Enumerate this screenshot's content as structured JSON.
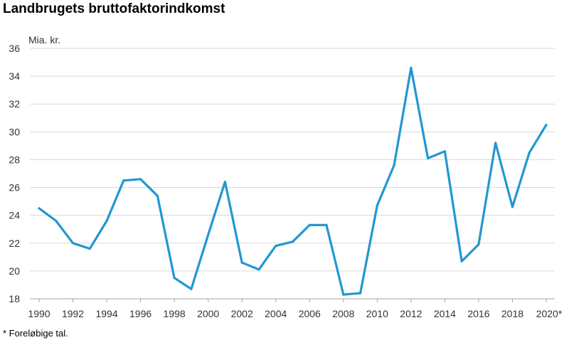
{
  "title": "Landbrugets bruttofaktorindkomst",
  "footnote": "* Foreløbige tal.",
  "colors": {
    "line": "#2197d1",
    "grid": "#d9d9d9",
    "axis": "#a6a6a6",
    "text": "#333333"
  },
  "chart_data": {
    "type": "line",
    "title": "Landbrugets bruttofaktorindkomst",
    "ylabel": "Mia. kr.",
    "xlabel": "",
    "ylim": [
      18,
      36
    ],
    "yticks": [
      18,
      20,
      22,
      24,
      26,
      28,
      30,
      32,
      34,
      36
    ],
    "xlim": [
      1990,
      2020
    ],
    "xtick_labels": [
      "1990",
      "1992",
      "1994",
      "1996",
      "1998",
      "2000",
      "2002",
      "2004",
      "2006",
      "2008",
      "2010",
      "2012",
      "2014",
      "2016",
      "2018",
      "2020*"
    ],
    "x": [
      1990,
      1991,
      1992,
      1993,
      1994,
      1995,
      1996,
      1997,
      1998,
      1999,
      2000,
      2001,
      2002,
      2003,
      2004,
      2005,
      2006,
      2007,
      2008,
      2009,
      2010,
      2011,
      2012,
      2013,
      2014,
      2015,
      2016,
      2017,
      2018,
      2019,
      2020
    ],
    "series": [
      {
        "name": "Bruttofaktorindkomst",
        "values": [
          24.5,
          23.6,
          22.0,
          21.6,
          23.6,
          26.5,
          26.6,
          25.4,
          19.5,
          18.7,
          22.6,
          26.4,
          20.6,
          20.1,
          21.8,
          22.1,
          23.3,
          23.3,
          18.3,
          18.4,
          24.7,
          27.6,
          34.6,
          28.1,
          28.6,
          20.7,
          21.9,
          29.2,
          24.6,
          28.5,
          30.5
        ]
      }
    ]
  }
}
